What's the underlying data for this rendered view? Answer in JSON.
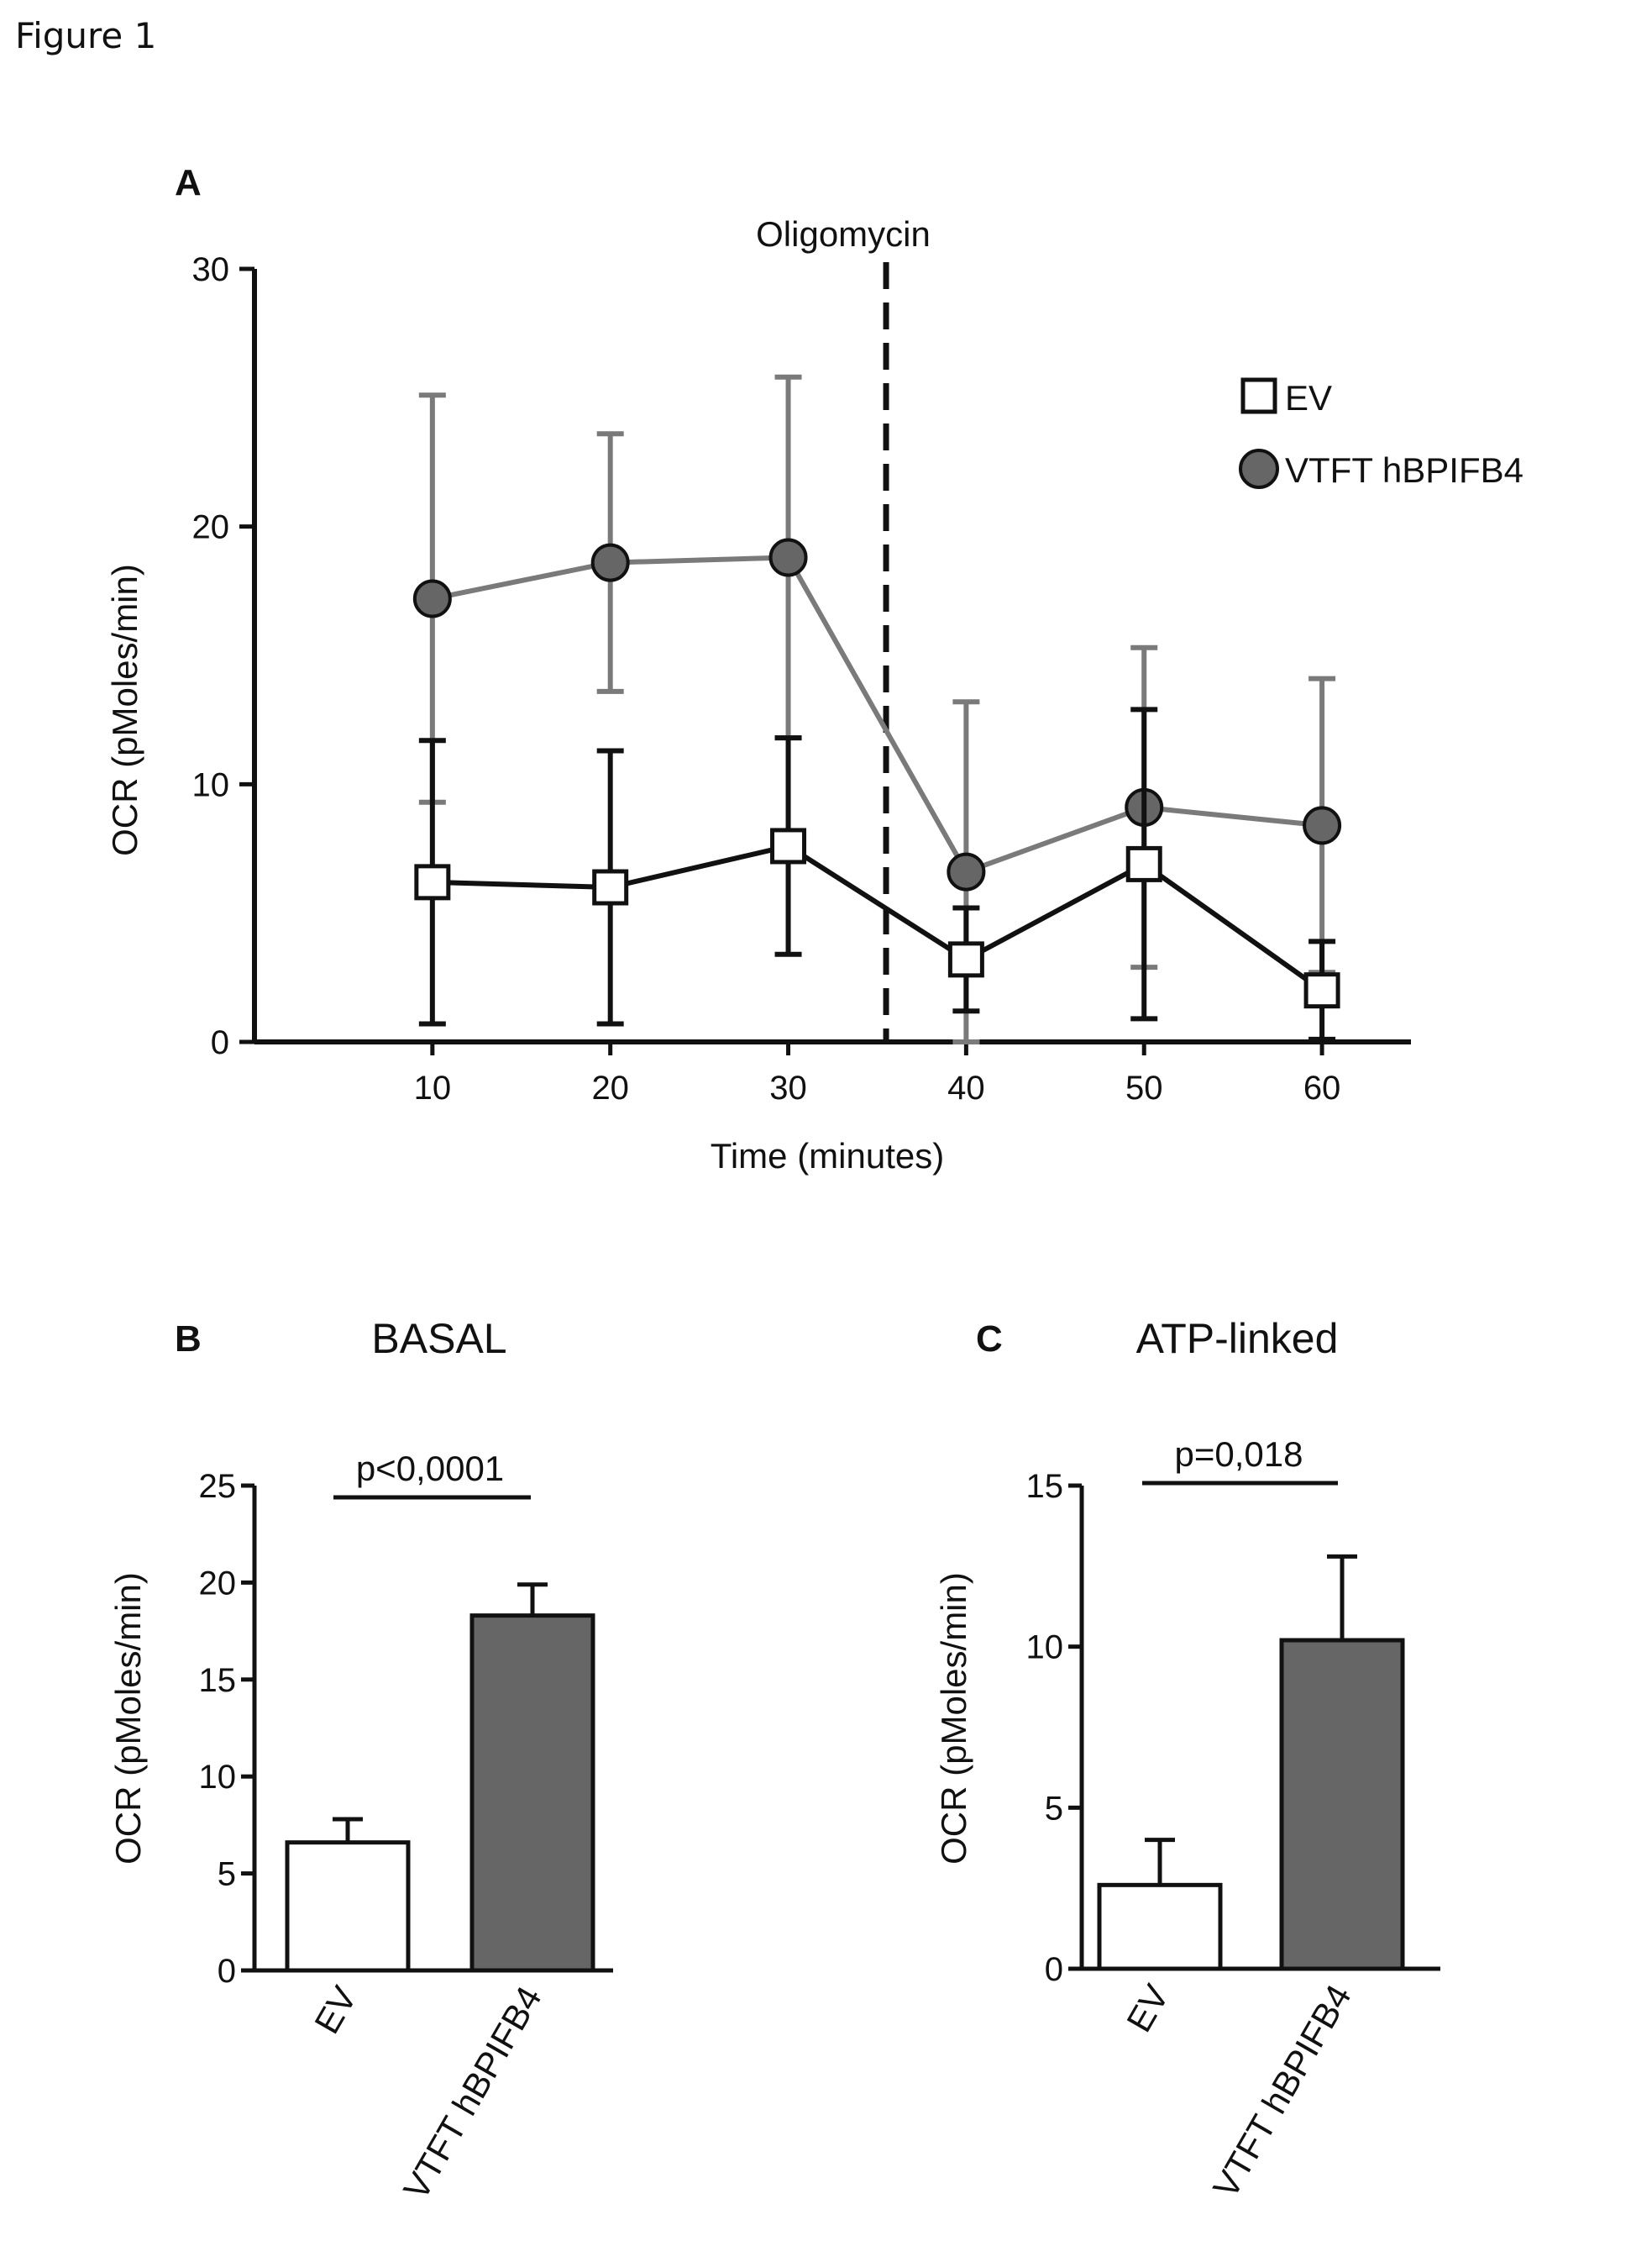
{
  "figure_title": "Figure 1",
  "panels": {
    "A": {
      "label": "A",
      "annotation": "Oligomycin",
      "legend_position": "top-right"
    },
    "B": {
      "label": "B",
      "title": "BASAL",
      "pvalue": "p<0,0001"
    },
    "C": {
      "label": "C",
      "title": "ATP-linked",
      "pvalue": "p=0,018"
    }
  },
  "colors": {
    "vtft": "#666666",
    "ev": "#ffffff",
    "ev_line": "#111111",
    "vtft_line": "#7a7a7a",
    "axis": "#111111"
  },
  "chart_data": [
    {
      "id": "A",
      "type": "line",
      "xlabel": "Time (minutes)",
      "ylabel": "OCR (pMoles/min)",
      "xlim": [
        0,
        65
      ],
      "ylim": [
        0,
        30
      ],
      "xticks": [
        10,
        20,
        30,
        40,
        50,
        60
      ],
      "yticks": [
        0,
        10,
        20,
        30
      ],
      "x": [
        10,
        20,
        30,
        40,
        50,
        60
      ],
      "vline_x": 35.5,
      "series": [
        {
          "name": "EV",
          "marker": "square",
          "values": [
            6.2,
            6.0,
            7.6,
            3.2,
            6.9,
            2.0
          ],
          "err": [
            5.5,
            5.3,
            4.2,
            2.0,
            6.0,
            1.9
          ]
        },
        {
          "name": "VTFT hBPIFB4",
          "marker": "circle",
          "values": [
            17.2,
            18.6,
            18.8,
            6.6,
            9.1,
            8.4
          ],
          "err": [
            7.9,
            5.0,
            7.0,
            6.6,
            6.2,
            5.7
          ]
        }
      ],
      "grid": false
    },
    {
      "id": "B",
      "type": "bar",
      "ylabel": "OCR (pMoles/min)",
      "categories": [
        "EV",
        "VTFT hBPIFB4"
      ],
      "values": [
        6.6,
        18.3
      ],
      "err": [
        1.2,
        1.6
      ],
      "ylim": [
        0,
        25
      ],
      "yticks": [
        0,
        5,
        10,
        15,
        20,
        25
      ]
    },
    {
      "id": "C",
      "type": "bar",
      "ylabel": "OCR (pMoles/min)",
      "categories": [
        "EV",
        "VTFT hBPIFB4"
      ],
      "values": [
        2.6,
        10.2
      ],
      "err": [
        1.4,
        2.6
      ],
      "ylim": [
        0,
        15
      ],
      "yticks": [
        0,
        5,
        10,
        15
      ]
    }
  ]
}
